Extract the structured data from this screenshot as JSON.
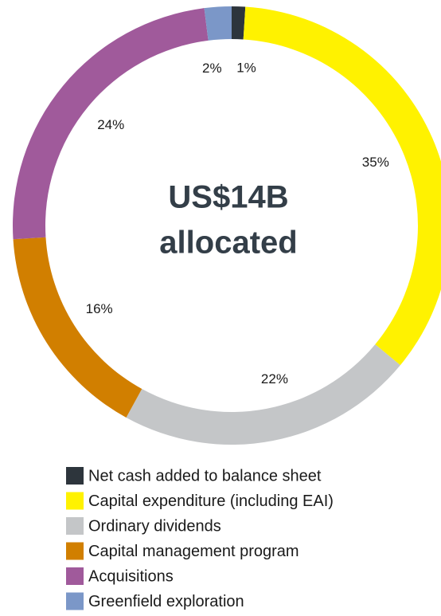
{
  "chart_data": {
    "type": "donut",
    "center_text": [
      "US$14B",
      "allocated"
    ],
    "categories": [
      "Net cash added to balance sheet",
      "Capital expenditure (including EAI)",
      "Ordinary dividends",
      "Capital management program",
      "Acquisitions",
      "Greenfield exploration"
    ],
    "values": [
      1,
      35,
      22,
      16,
      24,
      2
    ],
    "value_labels": [
      "1%",
      "35%",
      "22%",
      "16%",
      "24%",
      "2%"
    ],
    "colors": [
      "#2d353c",
      "#fff200",
      "#c4c6c8",
      "#d17f00",
      "#a05a9b",
      "#7b97c8"
    ]
  }
}
